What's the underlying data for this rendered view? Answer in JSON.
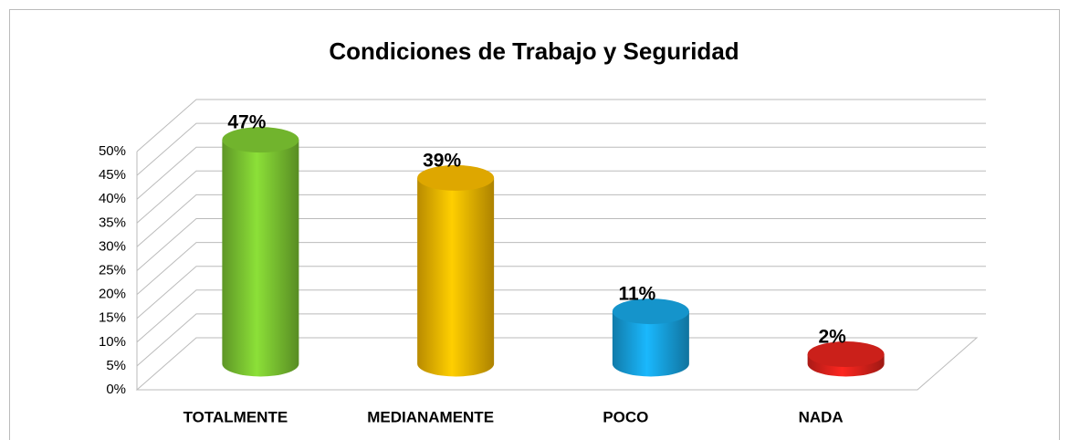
{
  "chart_data": {
    "type": "bar",
    "title": "Condiciones de Trabajo y Seguridad",
    "categories": [
      "TOTALMENTE",
      "MEDIANAMENTE",
      "POCO",
      "NADA"
    ],
    "values": [
      47,
      39,
      11,
      2
    ],
    "value_labels": [
      "47%",
      "39%",
      "11%",
      "2%"
    ],
    "colors": [
      "#7dc832",
      "#f7b900",
      "#17a4e2",
      "#e2231d"
    ],
    "ylim": [
      0,
      50
    ],
    "yticks": [
      {
        "value": 0,
        "label": "0%"
      },
      {
        "value": 5,
        "label": "5%"
      },
      {
        "value": 10,
        "label": "10%"
      },
      {
        "value": 15,
        "label": "15%"
      },
      {
        "value": 20,
        "label": "20%"
      },
      {
        "value": 25,
        "label": "25%"
      },
      {
        "value": 30,
        "label": "30%"
      },
      {
        "value": 35,
        "label": "35%"
      },
      {
        "value": 40,
        "label": "40%"
      },
      {
        "value": 45,
        "label": "45%"
      },
      {
        "value": 50,
        "label": "50%"
      }
    ],
    "grid": true
  }
}
